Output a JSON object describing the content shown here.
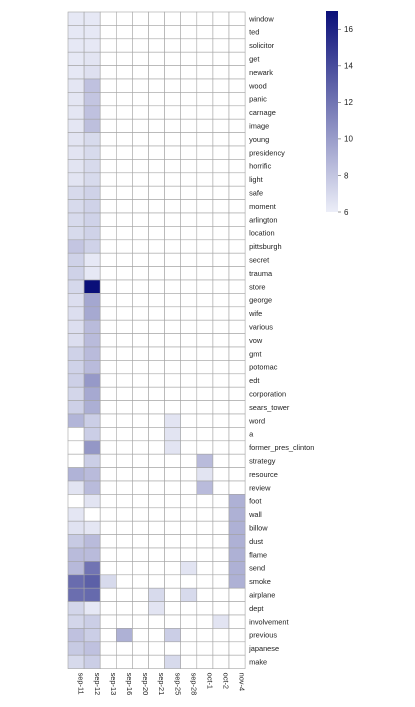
{
  "chart_data": {
    "type": "heatmap",
    "title": "",
    "xlabel": "",
    "ylabel": "",
    "columns": [
      "sep-11",
      "sep-12",
      "sep-13",
      "sep-16",
      "sep-20",
      "sep-21",
      "sep-25",
      "sep-28",
      "oct-1",
      "oct-2",
      "nov-4"
    ],
    "rows": [
      "window",
      "ted",
      "solicitor",
      "get",
      "newark",
      "wood",
      "panic",
      "carnage",
      "image",
      "young",
      "presidency",
      "horrific",
      "light",
      "safe",
      "moment",
      "arlington",
      "location",
      "pittsburgh",
      "secret",
      "trauma",
      "store",
      "george",
      "wife",
      "various",
      "vow",
      "gmt",
      "potomac",
      "edt",
      "corporation",
      "sears_tower",
      "word",
      "a",
      "former_pres_clinton",
      "strategy",
      "resource",
      "review",
      "foot",
      "wall",
      "billow",
      "dust",
      "flame",
      "send",
      "smoke",
      "airplane",
      "dept",
      "involvement",
      "previous",
      "japanese",
      "make"
    ],
    "values": [
      [
        6.3,
        6.3,
        null,
        null,
        null,
        null,
        null,
        null,
        null,
        null,
        null
      ],
      [
        6.3,
        6.3,
        null,
        null,
        null,
        null,
        null,
        null,
        null,
        null,
        null
      ],
      [
        6.3,
        6.3,
        null,
        null,
        null,
        null,
        null,
        null,
        null,
        null,
        null
      ],
      [
        6.3,
        6.5,
        null,
        null,
        null,
        null,
        null,
        null,
        null,
        null,
        null
      ],
      [
        6.3,
        6.7,
        null,
        null,
        null,
        null,
        null,
        null,
        null,
        null,
        null
      ],
      [
        6.4,
        8.2,
        null,
        null,
        null,
        null,
        null,
        null,
        null,
        null,
        null
      ],
      [
        6.4,
        8.0,
        null,
        null,
        null,
        null,
        null,
        null,
        null,
        null,
        null
      ],
      [
        6.4,
        8.2,
        null,
        null,
        null,
        null,
        null,
        null,
        null,
        null,
        null
      ],
      [
        6.4,
        8.3,
        null,
        null,
        null,
        null,
        null,
        null,
        null,
        null,
        null
      ],
      [
        6.5,
        7.0,
        null,
        null,
        null,
        null,
        null,
        null,
        null,
        null,
        null
      ],
      [
        6.5,
        7.0,
        null,
        null,
        null,
        null,
        null,
        null,
        null,
        null,
        null
      ],
      [
        6.5,
        7.0,
        null,
        null,
        null,
        null,
        null,
        null,
        null,
        null,
        null
      ],
      [
        6.5,
        7.0,
        null,
        null,
        null,
        null,
        null,
        null,
        null,
        null,
        null
      ],
      [
        7.0,
        7.4,
        null,
        null,
        null,
        null,
        null,
        null,
        null,
        null,
        null
      ],
      [
        7.0,
        7.4,
        null,
        null,
        null,
        null,
        null,
        null,
        null,
        null,
        null
      ],
      [
        7.0,
        7.4,
        null,
        null,
        null,
        null,
        null,
        null,
        null,
        null,
        null
      ],
      [
        7.0,
        7.4,
        null,
        null,
        null,
        null,
        null,
        null,
        null,
        null,
        null
      ],
      [
        8.0,
        7.4,
        null,
        null,
        null,
        null,
        null,
        null,
        null,
        null,
        null
      ],
      [
        7.4,
        6.3,
        null,
        null,
        null,
        null,
        null,
        null,
        null,
        null,
        null
      ],
      [
        7.4,
        6.3,
        null,
        null,
        null,
        null,
        null,
        null,
        null,
        null,
        null
      ],
      [
        7.1,
        17.0,
        null,
        null,
        null,
        null,
        null,
        null,
        null,
        null,
        null
      ],
      [
        6.8,
        9.5,
        null,
        null,
        null,
        null,
        null,
        null,
        null,
        null,
        null
      ],
      [
        6.8,
        9.4,
        null,
        null,
        null,
        null,
        null,
        null,
        null,
        null,
        null
      ],
      [
        6.8,
        8.5,
        null,
        null,
        null,
        null,
        null,
        null,
        null,
        null,
        null
      ],
      [
        6.8,
        8.5,
        null,
        null,
        null,
        null,
        null,
        null,
        null,
        null,
        null
      ],
      [
        7.4,
        8.5,
        null,
        null,
        null,
        null,
        null,
        null,
        null,
        null,
        null
      ],
      [
        7.4,
        8.5,
        null,
        null,
        null,
        null,
        null,
        null,
        null,
        null,
        null
      ],
      [
        7.5,
        10.2,
        null,
        null,
        null,
        null,
        null,
        null,
        null,
        null,
        null
      ],
      [
        7.2,
        9.4,
        null,
        null,
        null,
        null,
        null,
        null,
        null,
        null,
        null
      ],
      [
        7.5,
        9.1,
        null,
        null,
        null,
        null,
        null,
        null,
        null,
        null,
        null
      ],
      [
        8.8,
        7.6,
        null,
        null,
        null,
        null,
        6.5,
        null,
        null,
        null,
        null
      ],
      [
        null,
        7.6,
        null,
        null,
        null,
        null,
        6.5,
        null,
        null,
        null,
        null
      ],
      [
        null,
        10.3,
        null,
        null,
        null,
        null,
        6.5,
        null,
        null,
        null,
        null
      ],
      [
        null,
        7.6,
        null,
        null,
        null,
        null,
        null,
        null,
        8.5,
        null,
        null
      ],
      [
        8.9,
        8.5,
        null,
        null,
        null,
        null,
        null,
        null,
        6.5,
        null,
        null
      ],
      [
        6.5,
        8.5,
        null,
        null,
        null,
        null,
        null,
        null,
        8.5,
        null,
        null
      ],
      [
        null,
        6.5,
        null,
        null,
        null,
        null,
        null,
        null,
        null,
        null,
        9.0
      ],
      [
        6.4,
        null,
        null,
        null,
        null,
        null,
        null,
        null,
        null,
        null,
        9.0
      ],
      [
        6.6,
        6.4,
        null,
        null,
        null,
        null,
        null,
        null,
        null,
        null,
        9.0
      ],
      [
        7.8,
        8.5,
        null,
        null,
        null,
        null,
        null,
        null,
        null,
        null,
        9.0
      ],
      [
        8.5,
        8.5,
        null,
        null,
        null,
        null,
        null,
        null,
        null,
        null,
        9.0
      ],
      [
        8.6,
        12.0,
        null,
        null,
        null,
        null,
        null,
        6.5,
        null,
        null,
        9.0
      ],
      [
        12.4,
        13.0,
        7.0,
        null,
        null,
        null,
        null,
        null,
        null,
        null,
        9.0
      ],
      [
        12.3,
        12.5,
        null,
        null,
        null,
        7.0,
        null,
        7.0,
        null,
        null,
        null
      ],
      [
        7.2,
        6.3,
        null,
        null,
        null,
        6.5,
        null,
        null,
        null,
        null,
        null
      ],
      [
        7.2,
        7.6,
        null,
        null,
        null,
        null,
        null,
        null,
        null,
        6.5,
        null
      ],
      [
        8.2,
        7.6,
        null,
        9.0,
        null,
        null,
        7.6,
        null,
        null,
        null,
        null
      ],
      [
        7.8,
        8.2,
        null,
        null,
        null,
        null,
        null,
        null,
        null,
        null,
        null
      ],
      [
        7.0,
        7.6,
        null,
        null,
        null,
        null,
        7.0,
        null,
        null,
        null,
        null
      ]
    ],
    "colorbar": {
      "min": 6,
      "max": 17,
      "ticks": [
        6,
        8,
        10,
        12,
        14,
        16
      ],
      "color_low": "#eceef8",
      "color_high": "#0a0f79"
    },
    "legend_position": "top-right",
    "grid": true
  }
}
